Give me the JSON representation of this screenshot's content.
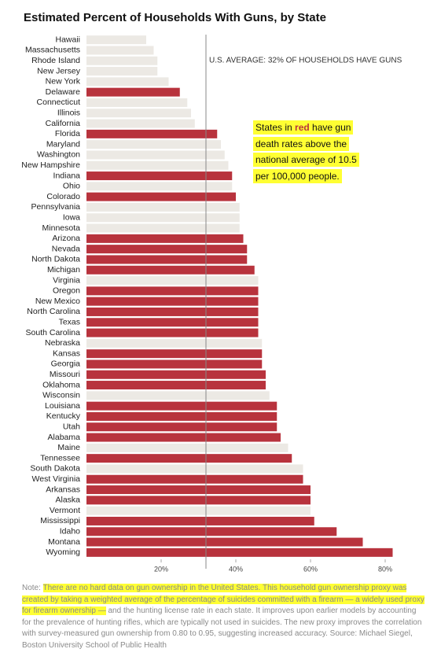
{
  "chart_data": {
    "type": "hbar",
    "title": "Estimated Percent of Households With Guns, by State",
    "categories": [
      "Hawaii",
      "Massachusetts",
      "Rhode Island",
      "New Jersey",
      "New York",
      "Delaware",
      "Connecticut",
      "Illinois",
      "California",
      "Florida",
      "Maryland",
      "Washington",
      "New Hampshire",
      "Indiana",
      "Ohio",
      "Colorado",
      "Pennsylvania",
      "Iowa",
      "Minnesota",
      "Arizona",
      "Nevada",
      "North Dakota",
      "Michigan",
      "Virginia",
      "Oregon",
      "New Mexico",
      "North Carolina",
      "Texas",
      "South Carolina",
      "Nebraska",
      "Kansas",
      "Georgia",
      "Missouri",
      "Oklahoma",
      "Wisconsin",
      "Louisiana",
      "Kentucky",
      "Utah",
      "Alabama",
      "Maine",
      "Tennessee",
      "South Dakota",
      "West Virginia",
      "Arkansas",
      "Alaska",
      "Vermont",
      "Mississippi",
      "Idaho",
      "Montana",
      "Wyoming"
    ],
    "values": [
      16,
      18,
      19,
      19,
      22,
      25,
      27,
      28,
      29,
      35,
      36,
      37,
      38,
      39,
      39,
      40,
      41,
      41,
      41,
      42,
      43,
      43,
      45,
      46,
      46,
      46,
      46,
      46,
      46,
      47,
      47,
      47,
      48,
      48,
      49,
      51,
      51,
      51,
      52,
      54,
      55,
      58,
      58,
      60,
      60,
      60,
      61,
      67,
      74,
      82
    ],
    "colors": [
      "#ece9e4",
      "#ece9e4",
      "#ece9e4",
      "#ece9e4",
      "#ece9e4",
      "#b8333d",
      "#ece9e4",
      "#ece9e4",
      "#ece9e4",
      "#b8333d",
      "#ece9e4",
      "#ece9e4",
      "#ece9e4",
      "#b8333d",
      "#ece9e4",
      "#b8333d",
      "#ece9e4",
      "#ece9e4",
      "#ece9e4",
      "#b8333d",
      "#b8333d",
      "#b8333d",
      "#b8333d",
      "#ece9e4",
      "#b8333d",
      "#b8333d",
      "#b8333d",
      "#b8333d",
      "#b8333d",
      "#ece9e4",
      "#b8333d",
      "#b8333d",
      "#b8333d",
      "#b8333d",
      "#ece9e4",
      "#b8333d",
      "#b8333d",
      "#b8333d",
      "#b8333d",
      "#ece9e4",
      "#b8333d",
      "#ece9e4",
      "#b8333d",
      "#b8333d",
      "#b8333d",
      "#ece9e4",
      "#b8333d",
      "#b8333d",
      "#b8333d",
      "#b8333d"
    ],
    "xlim": [
      0,
      84
    ],
    "xticks": [
      {
        "value": 20,
        "label": "20%"
      },
      {
        "value": 40,
        "label": "40%"
      },
      {
        "value": 60,
        "label": "60%"
      },
      {
        "value": 80,
        "label": "80%"
      }
    ],
    "average": 32,
    "average_label": "U.S. AVERAGE: 32% OF HOUSEHOLDS HAVE GUNS",
    "callout": {
      "prefix": "States in ",
      "highlight": "red",
      "suffix": " have gun death rates above the national average of 10.5 per 100,000 people."
    },
    "note": {
      "label": "Note:",
      "highlighted": "There are no hard data on gun ownership in the United States. This household gun ownership proxy was created by taking a weighted average of the percentage of suicides committed with a firearm — a widely used proxy for firearm ownership —",
      "rest": "and the hunting license rate in each state. It improves upon earlier models by accounting for the prevalence of hunting rifles, which are typically not used in suicides. The new proxy improves the correlation with survey-measured gun ownership from 0.80 to 0.95, suggesting increased accuracy. Source: Michael Siegel, Boston University School of Public Health"
    }
  }
}
